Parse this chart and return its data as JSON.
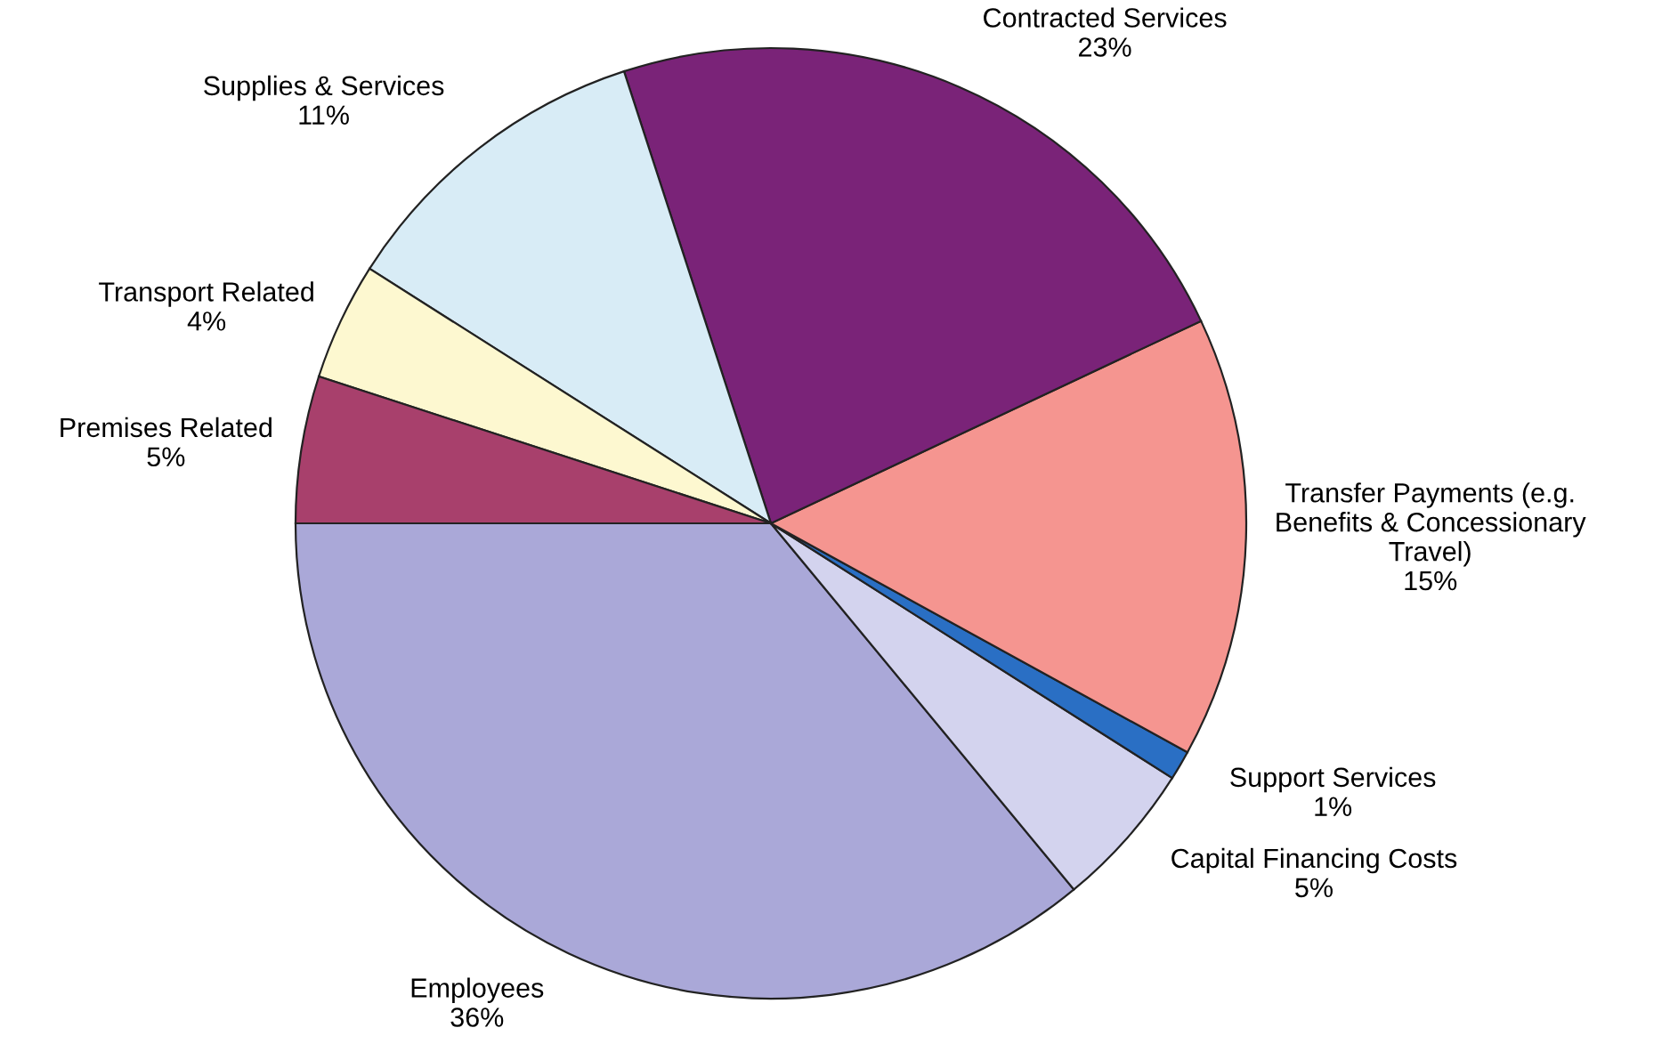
{
  "chart_data": {
    "type": "pie",
    "categories": [
      "Employees",
      "Capital Financing Costs",
      "Support Services",
      "Transfer Payments (e.g.\nBenefits & Concessionary\nTravel)",
      "Contracted Services",
      "Supplies & Services",
      "Transport Related",
      "Premises Related"
    ],
    "values": [
      36,
      5,
      1,
      15,
      23,
      11,
      4,
      5
    ],
    "value_labels": [
      "36%",
      "5%",
      "1%",
      "15%",
      "23%",
      "11%",
      "4%",
      "5%"
    ],
    "colors": [
      "#aaa8d8",
      "#d3d3ee",
      "#2a6fc4",
      "#f59590",
      "#7a2378",
      "#d8ecf6",
      "#fdf8d0",
      "#a8406c"
    ],
    "legend": false
  }
}
